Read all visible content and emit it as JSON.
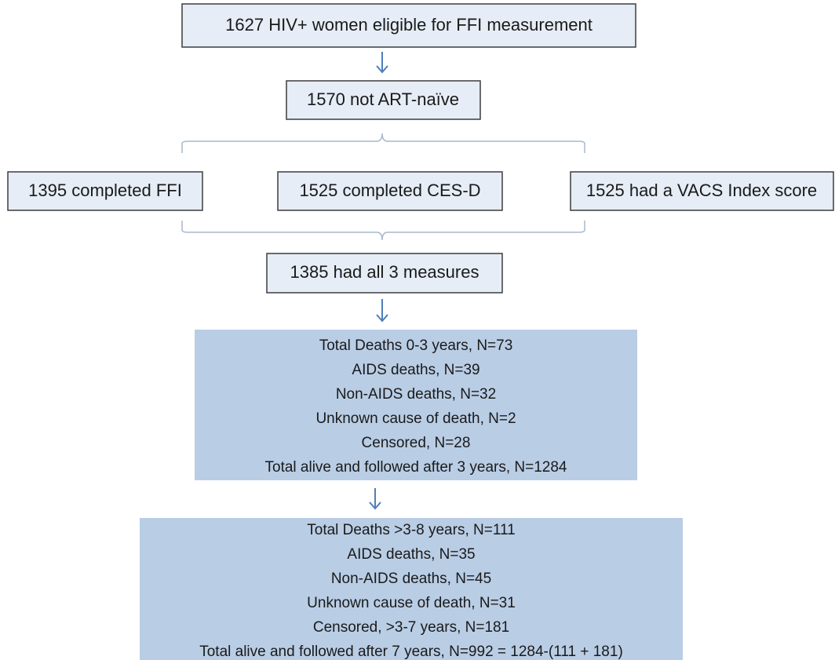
{
  "nodes": [
    {
      "label": "1627 HIV+ women eligible for FFI measurement"
    },
    {
      "label": "1570 not ART-naïve"
    },
    {
      "label": "1395 completed FFI"
    },
    {
      "label": "1525 completed CES-D"
    },
    {
      "label": "1525 had a VACS Index score"
    },
    {
      "label": "1385 had all 3 measures"
    }
  ],
  "summaries": [
    {
      "lines": [
        "Total Deaths 0-3 years, N=73",
        "AIDS deaths, N=39",
        "Non-AIDS deaths, N=32",
        "Unknown cause of death, N=2",
        "Censored, N=28",
        "Total alive and followed after 3 years, N=1284"
      ]
    },
    {
      "lines": [
        "Total Deaths >3-8 years, N=111",
        "AIDS deaths, N=35",
        "Non-AIDS deaths, N=45",
        "Unknown cause of death, N=31",
        "Censored, >3-7 years, N=181",
        "Total alive and followed after 7 years, N=992 = 1284-(111 + 181)"
      ]
    }
  ]
}
